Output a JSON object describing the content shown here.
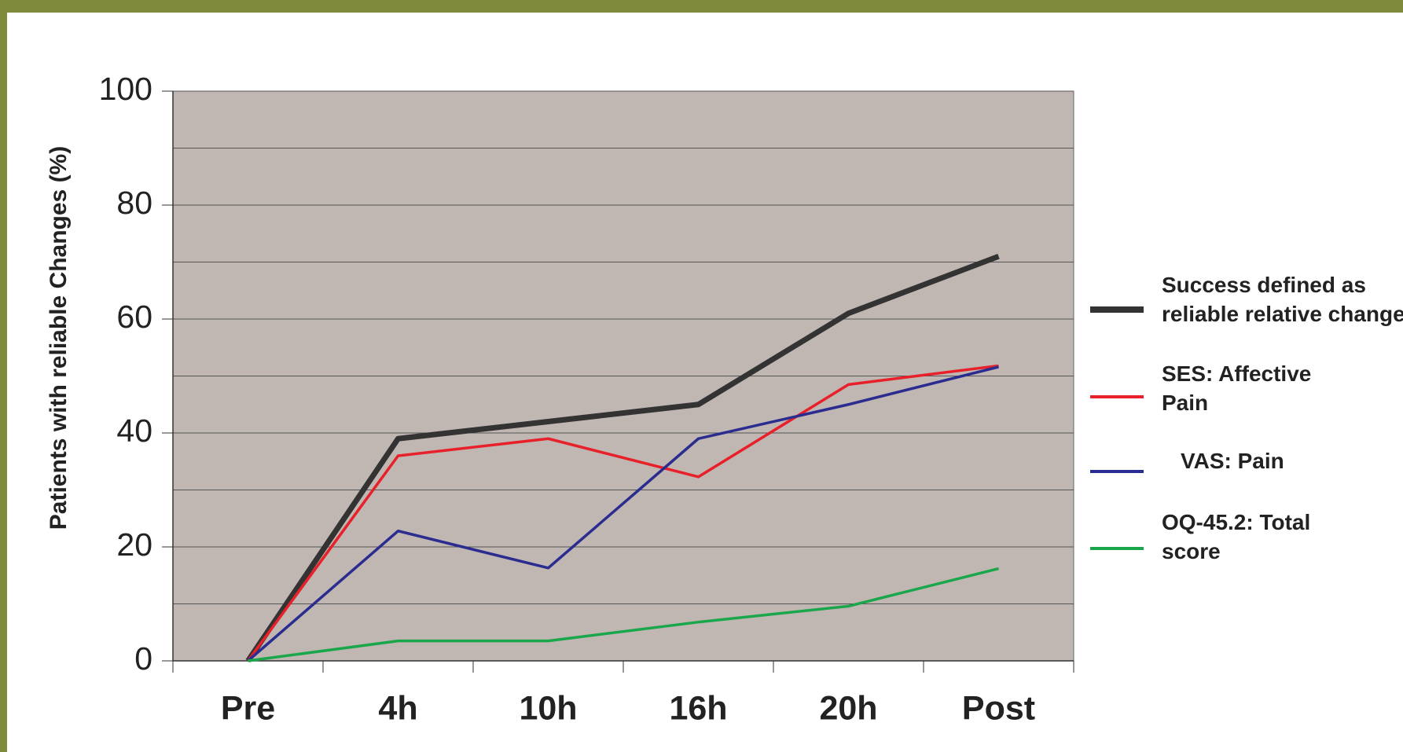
{
  "chart_data": {
    "type": "line",
    "y_label": "Patients with reliable Changes (%)",
    "categories": [
      "Pre",
      "4h",
      "10h",
      "16h",
      "20h",
      "Post"
    ],
    "series": [
      {
        "name": "Success defined as reliable relative change",
        "color": "#333333",
        "values": [
          0,
          39,
          42,
          45,
          61,
          71
        ]
      },
      {
        "name": "SES: Affective Pain",
        "color": "#e8202a",
        "values": [
          0,
          36,
          39,
          32.3,
          48.5,
          51.8
        ]
      },
      {
        "name": "VAS: Pain",
        "color": "#2b2c8f",
        "values": [
          0,
          22.8,
          16.3,
          39,
          45,
          51.6
        ]
      },
      {
        "name": "OQ-45.2: Total score",
        "color": "#1aa64a",
        "values": [
          0,
          3.5,
          3.5,
          6.8,
          9.6,
          16.2
        ]
      }
    ],
    "ylim": [
      0,
      100
    ],
    "yticks": [
      0,
      20,
      40,
      60,
      80,
      100
    ],
    "minor_yticks": [
      10,
      30,
      50,
      70,
      90
    ],
    "grid": true,
    "legend": "right"
  }
}
